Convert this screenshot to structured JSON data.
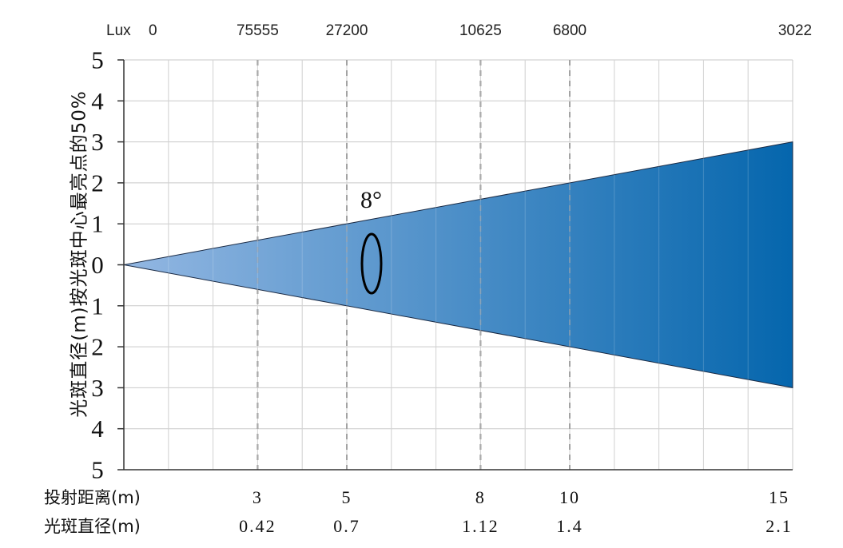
{
  "chart_data": {
    "type": "area",
    "title": "",
    "ylabel": "光斑直径(m)按光斑中心最亮点的50%",
    "ylim": [
      -5,
      5
    ],
    "y_ticks": [
      "5",
      "4",
      "3",
      "2",
      "1",
      "0",
      "1",
      "2",
      "3",
      "4",
      "5"
    ],
    "xlim": [
      0,
      15
    ],
    "grid": true,
    "beam_angle_label": "8°",
    "lux_label": "Lux",
    "lux_zero": "0",
    "marks": [
      {
        "distance": 3,
        "distance_label": "3",
        "lux": "75555",
        "diameter": "0.42"
      },
      {
        "distance": 5,
        "distance_label": "5",
        "lux": "27200",
        "diameter": "0.7"
      },
      {
        "distance": 8,
        "distance_label": "8",
        "lux": "10625",
        "diameter": "1.12"
      },
      {
        "distance": 10,
        "distance_label": "10",
        "lux": "6800",
        "diameter": "1.4"
      },
      {
        "distance": 15,
        "distance_label": "15",
        "lux": "3022",
        "diameter": "2.1"
      }
    ],
    "beam_half_width_at_end": 3,
    "row_labels": {
      "distance": "投射距离(m)",
      "diameter": "光斑直径(m)"
    },
    "colors": {
      "beam_start": "#93b7e2",
      "beam_end": "#0566ad",
      "grid": "#c9c9c9",
      "dashed": "#9a9a9a"
    }
  }
}
